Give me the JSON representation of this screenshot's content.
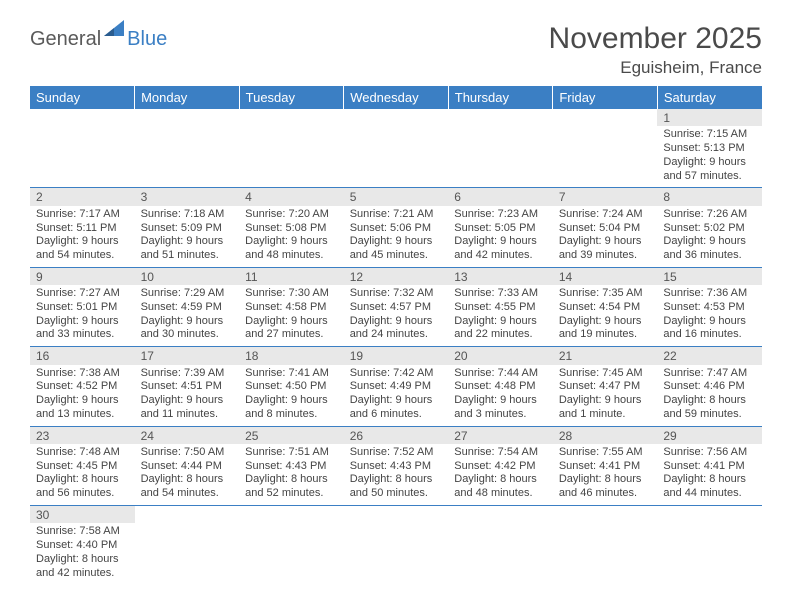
{
  "logo": {
    "part1": "General",
    "part2": "Blue"
  },
  "title": "November 2025",
  "location": "Eguisheim, France",
  "colors": {
    "header_bg": "#3b7fc4",
    "header_text": "#ffffff",
    "daynum_bg": "#e8e8e8",
    "border": "#3b7fc4"
  },
  "weekdays": [
    "Sunday",
    "Monday",
    "Tuesday",
    "Wednesday",
    "Thursday",
    "Friday",
    "Saturday"
  ],
  "weeks": [
    [
      null,
      null,
      null,
      null,
      null,
      null,
      {
        "n": "1",
        "sunrise": "Sunrise: 7:15 AM",
        "sunset": "Sunset: 5:13 PM",
        "day1": "Daylight: 9 hours",
        "day2": "and 57 minutes."
      }
    ],
    [
      {
        "n": "2",
        "sunrise": "Sunrise: 7:17 AM",
        "sunset": "Sunset: 5:11 PM",
        "day1": "Daylight: 9 hours",
        "day2": "and 54 minutes."
      },
      {
        "n": "3",
        "sunrise": "Sunrise: 7:18 AM",
        "sunset": "Sunset: 5:09 PM",
        "day1": "Daylight: 9 hours",
        "day2": "and 51 minutes."
      },
      {
        "n": "4",
        "sunrise": "Sunrise: 7:20 AM",
        "sunset": "Sunset: 5:08 PM",
        "day1": "Daylight: 9 hours",
        "day2": "and 48 minutes."
      },
      {
        "n": "5",
        "sunrise": "Sunrise: 7:21 AM",
        "sunset": "Sunset: 5:06 PM",
        "day1": "Daylight: 9 hours",
        "day2": "and 45 minutes."
      },
      {
        "n": "6",
        "sunrise": "Sunrise: 7:23 AM",
        "sunset": "Sunset: 5:05 PM",
        "day1": "Daylight: 9 hours",
        "day2": "and 42 minutes."
      },
      {
        "n": "7",
        "sunrise": "Sunrise: 7:24 AM",
        "sunset": "Sunset: 5:04 PM",
        "day1": "Daylight: 9 hours",
        "day2": "and 39 minutes."
      },
      {
        "n": "8",
        "sunrise": "Sunrise: 7:26 AM",
        "sunset": "Sunset: 5:02 PM",
        "day1": "Daylight: 9 hours",
        "day2": "and 36 minutes."
      }
    ],
    [
      {
        "n": "9",
        "sunrise": "Sunrise: 7:27 AM",
        "sunset": "Sunset: 5:01 PM",
        "day1": "Daylight: 9 hours",
        "day2": "and 33 minutes."
      },
      {
        "n": "10",
        "sunrise": "Sunrise: 7:29 AM",
        "sunset": "Sunset: 4:59 PM",
        "day1": "Daylight: 9 hours",
        "day2": "and 30 minutes."
      },
      {
        "n": "11",
        "sunrise": "Sunrise: 7:30 AM",
        "sunset": "Sunset: 4:58 PM",
        "day1": "Daylight: 9 hours",
        "day2": "and 27 minutes."
      },
      {
        "n": "12",
        "sunrise": "Sunrise: 7:32 AM",
        "sunset": "Sunset: 4:57 PM",
        "day1": "Daylight: 9 hours",
        "day2": "and 24 minutes."
      },
      {
        "n": "13",
        "sunrise": "Sunrise: 7:33 AM",
        "sunset": "Sunset: 4:55 PM",
        "day1": "Daylight: 9 hours",
        "day2": "and 22 minutes."
      },
      {
        "n": "14",
        "sunrise": "Sunrise: 7:35 AM",
        "sunset": "Sunset: 4:54 PM",
        "day1": "Daylight: 9 hours",
        "day2": "and 19 minutes."
      },
      {
        "n": "15",
        "sunrise": "Sunrise: 7:36 AM",
        "sunset": "Sunset: 4:53 PM",
        "day1": "Daylight: 9 hours",
        "day2": "and 16 minutes."
      }
    ],
    [
      {
        "n": "16",
        "sunrise": "Sunrise: 7:38 AM",
        "sunset": "Sunset: 4:52 PM",
        "day1": "Daylight: 9 hours",
        "day2": "and 13 minutes."
      },
      {
        "n": "17",
        "sunrise": "Sunrise: 7:39 AM",
        "sunset": "Sunset: 4:51 PM",
        "day1": "Daylight: 9 hours",
        "day2": "and 11 minutes."
      },
      {
        "n": "18",
        "sunrise": "Sunrise: 7:41 AM",
        "sunset": "Sunset: 4:50 PM",
        "day1": "Daylight: 9 hours",
        "day2": "and 8 minutes."
      },
      {
        "n": "19",
        "sunrise": "Sunrise: 7:42 AM",
        "sunset": "Sunset: 4:49 PM",
        "day1": "Daylight: 9 hours",
        "day2": "and 6 minutes."
      },
      {
        "n": "20",
        "sunrise": "Sunrise: 7:44 AM",
        "sunset": "Sunset: 4:48 PM",
        "day1": "Daylight: 9 hours",
        "day2": "and 3 minutes."
      },
      {
        "n": "21",
        "sunrise": "Sunrise: 7:45 AM",
        "sunset": "Sunset: 4:47 PM",
        "day1": "Daylight: 9 hours",
        "day2": "and 1 minute."
      },
      {
        "n": "22",
        "sunrise": "Sunrise: 7:47 AM",
        "sunset": "Sunset: 4:46 PM",
        "day1": "Daylight: 8 hours",
        "day2": "and 59 minutes."
      }
    ],
    [
      {
        "n": "23",
        "sunrise": "Sunrise: 7:48 AM",
        "sunset": "Sunset: 4:45 PM",
        "day1": "Daylight: 8 hours",
        "day2": "and 56 minutes."
      },
      {
        "n": "24",
        "sunrise": "Sunrise: 7:50 AM",
        "sunset": "Sunset: 4:44 PM",
        "day1": "Daylight: 8 hours",
        "day2": "and 54 minutes."
      },
      {
        "n": "25",
        "sunrise": "Sunrise: 7:51 AM",
        "sunset": "Sunset: 4:43 PM",
        "day1": "Daylight: 8 hours",
        "day2": "and 52 minutes."
      },
      {
        "n": "26",
        "sunrise": "Sunrise: 7:52 AM",
        "sunset": "Sunset: 4:43 PM",
        "day1": "Daylight: 8 hours",
        "day2": "and 50 minutes."
      },
      {
        "n": "27",
        "sunrise": "Sunrise: 7:54 AM",
        "sunset": "Sunset: 4:42 PM",
        "day1": "Daylight: 8 hours",
        "day2": "and 48 minutes."
      },
      {
        "n": "28",
        "sunrise": "Sunrise: 7:55 AM",
        "sunset": "Sunset: 4:41 PM",
        "day1": "Daylight: 8 hours",
        "day2": "and 46 minutes."
      },
      {
        "n": "29",
        "sunrise": "Sunrise: 7:56 AM",
        "sunset": "Sunset: 4:41 PM",
        "day1": "Daylight: 8 hours",
        "day2": "and 44 minutes."
      }
    ],
    [
      {
        "n": "30",
        "sunrise": "Sunrise: 7:58 AM",
        "sunset": "Sunset: 4:40 PM",
        "day1": "Daylight: 8 hours",
        "day2": "and 42 minutes."
      },
      null,
      null,
      null,
      null,
      null,
      null
    ]
  ]
}
